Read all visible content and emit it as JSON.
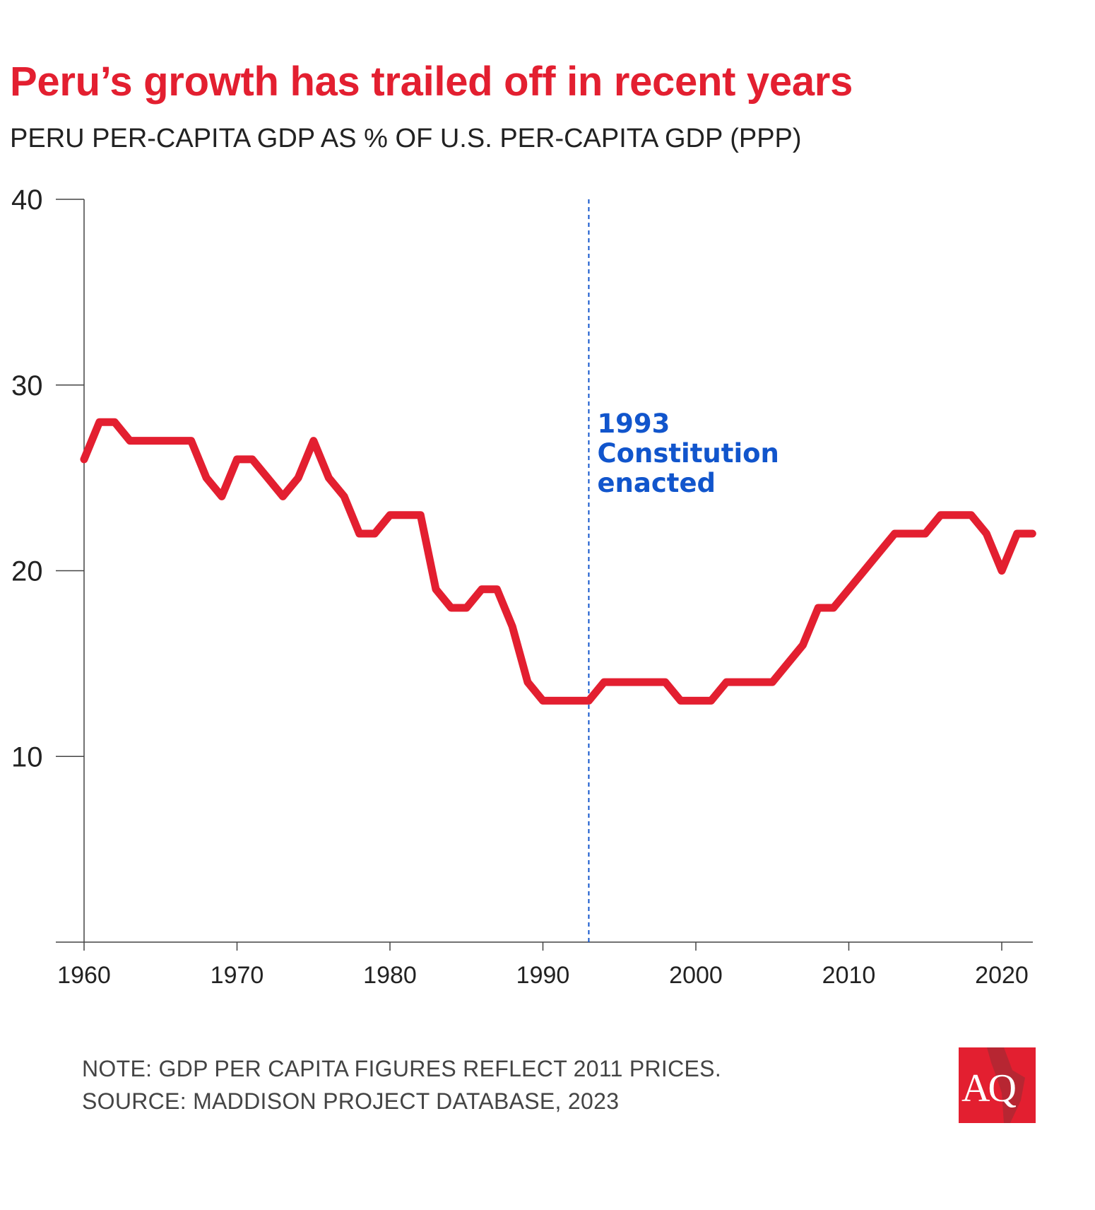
{
  "title": "Peru’s growth has trailed off in recent years",
  "subtitle": "PERU PER-CAPITA GDP AS % OF U.S. PER-CAPITA GDP (PPP)",
  "note": "NOTE: GDP PER CAPITA FIGURES REFLECT 2011 PRICES.",
  "source": "SOURCE: MADDISON PROJECT DATABASE, 2023",
  "logo_text": "AQ",
  "colors": {
    "line": "#e31f30",
    "annotation": "#1155cc",
    "logo": "#e31f30"
  },
  "chart_data": {
    "type": "line",
    "title": "Peru’s growth has trailed off in recent years",
    "subtitle": "PERU PER-CAPITA GDP AS % OF U.S. PER-CAPITA GDP (PPP)",
    "xlabel": "",
    "ylabel": "",
    "xlim": [
      1960,
      2022
    ],
    "ylim": [
      0,
      40
    ],
    "x_ticks": [
      "1960",
      "1970",
      "1980",
      "1990",
      "2000",
      "2010",
      "2020"
    ],
    "y_ticks": [
      "10",
      "20",
      "30",
      "40"
    ],
    "grid": false,
    "x": [
      1960,
      1961,
      1962,
      1963,
      1964,
      1965,
      1966,
      1967,
      1968,
      1969,
      1970,
      1971,
      1972,
      1973,
      1974,
      1975,
      1976,
      1977,
      1978,
      1979,
      1980,
      1981,
      1982,
      1983,
      1984,
      1985,
      1986,
      1987,
      1988,
      1989,
      1990,
      1991,
      1992,
      1993,
      1994,
      1995,
      1996,
      1997,
      1998,
      1999,
      2000,
      2001,
      2002,
      2003,
      2004,
      2005,
      2006,
      2007,
      2008,
      2009,
      2010,
      2011,
      2012,
      2013,
      2014,
      2015,
      2016,
      2017,
      2018,
      2019,
      2020,
      2021,
      2022
    ],
    "series": [
      {
        "values": [
          26,
          28,
          28,
          27,
          27,
          27,
          27,
          27,
          25,
          24,
          26,
          26,
          25,
          24,
          25,
          27,
          25,
          24,
          22,
          22,
          23,
          23,
          23,
          19,
          18,
          18,
          19,
          19,
          17,
          14,
          13,
          13,
          13,
          13,
          14,
          14,
          14,
          14,
          14,
          13,
          13,
          13,
          14,
          14,
          14,
          14,
          15,
          16,
          18,
          18,
          19,
          20,
          21,
          22,
          22,
          22,
          23,
          23,
          23,
          22,
          20,
          22,
          22
        ]
      }
    ],
    "annotations": [
      {
        "x": 1993,
        "style": "dashed-vertical",
        "lines": [
          "1993",
          "Constitution",
          "enacted"
        ]
      }
    ]
  }
}
